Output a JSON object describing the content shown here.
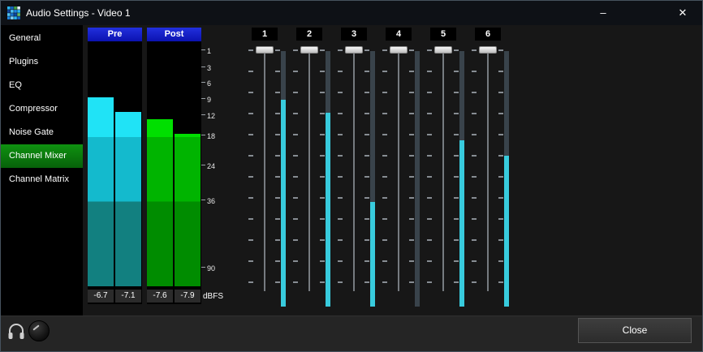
{
  "window": {
    "title": "Audio Settings - Video 1",
    "controls": {
      "minimize": "–",
      "close": "✕"
    }
  },
  "sidebar": {
    "items": [
      {
        "label": "General",
        "selected": false
      },
      {
        "label": "Plugins",
        "selected": false
      },
      {
        "label": "EQ",
        "selected": false
      },
      {
        "label": "Compressor",
        "selected": false
      },
      {
        "label": "Noise Gate",
        "selected": false
      },
      {
        "label": "Channel Mixer",
        "selected": true
      },
      {
        "label": "Channel Matrix",
        "selected": false
      }
    ]
  },
  "meters": {
    "pre_label": "Pre",
    "post_label": "Post",
    "unit_label": "dBFS",
    "scale_ticks": [
      "1",
      "3",
      "6",
      "9",
      "12",
      "18",
      "24",
      "36",
      "90"
    ],
    "pre": {
      "values": [
        "-6.7",
        "-7.1"
      ],
      "levels_pct": [
        78,
        72
      ]
    },
    "post": {
      "values": [
        "-7.6",
        "-7.9"
      ],
      "levels_pct": [
        69,
        63
      ]
    }
  },
  "mixer": {
    "channels": [
      {
        "label": "1",
        "meter_pct": 81
      },
      {
        "label": "2",
        "meter_pct": 76
      },
      {
        "label": "3",
        "meter_pct": 41
      },
      {
        "label": "4",
        "meter_pct": 0
      },
      {
        "label": "5",
        "meter_pct": 65
      },
      {
        "label": "6",
        "meter_pct": 59
      }
    ]
  },
  "footer": {
    "close_label": "Close"
  },
  "colors": {
    "header_blue": "#0b12b0",
    "selected_green": "#0f9210",
    "pre_meter_bright": "#20e3f6",
    "pre_meter_mid": "#14bacd",
    "pre_meter_low": "#128080",
    "post_meter_bright": "#00df00",
    "post_meter_mid": "#00b400",
    "post_meter_low": "#008c00",
    "channel_meter_cyan": "#38cbdd"
  },
  "icons": {
    "app": "colored-grid-logo",
    "headphones": "headphones",
    "knob": "headphone-volume-knob"
  }
}
